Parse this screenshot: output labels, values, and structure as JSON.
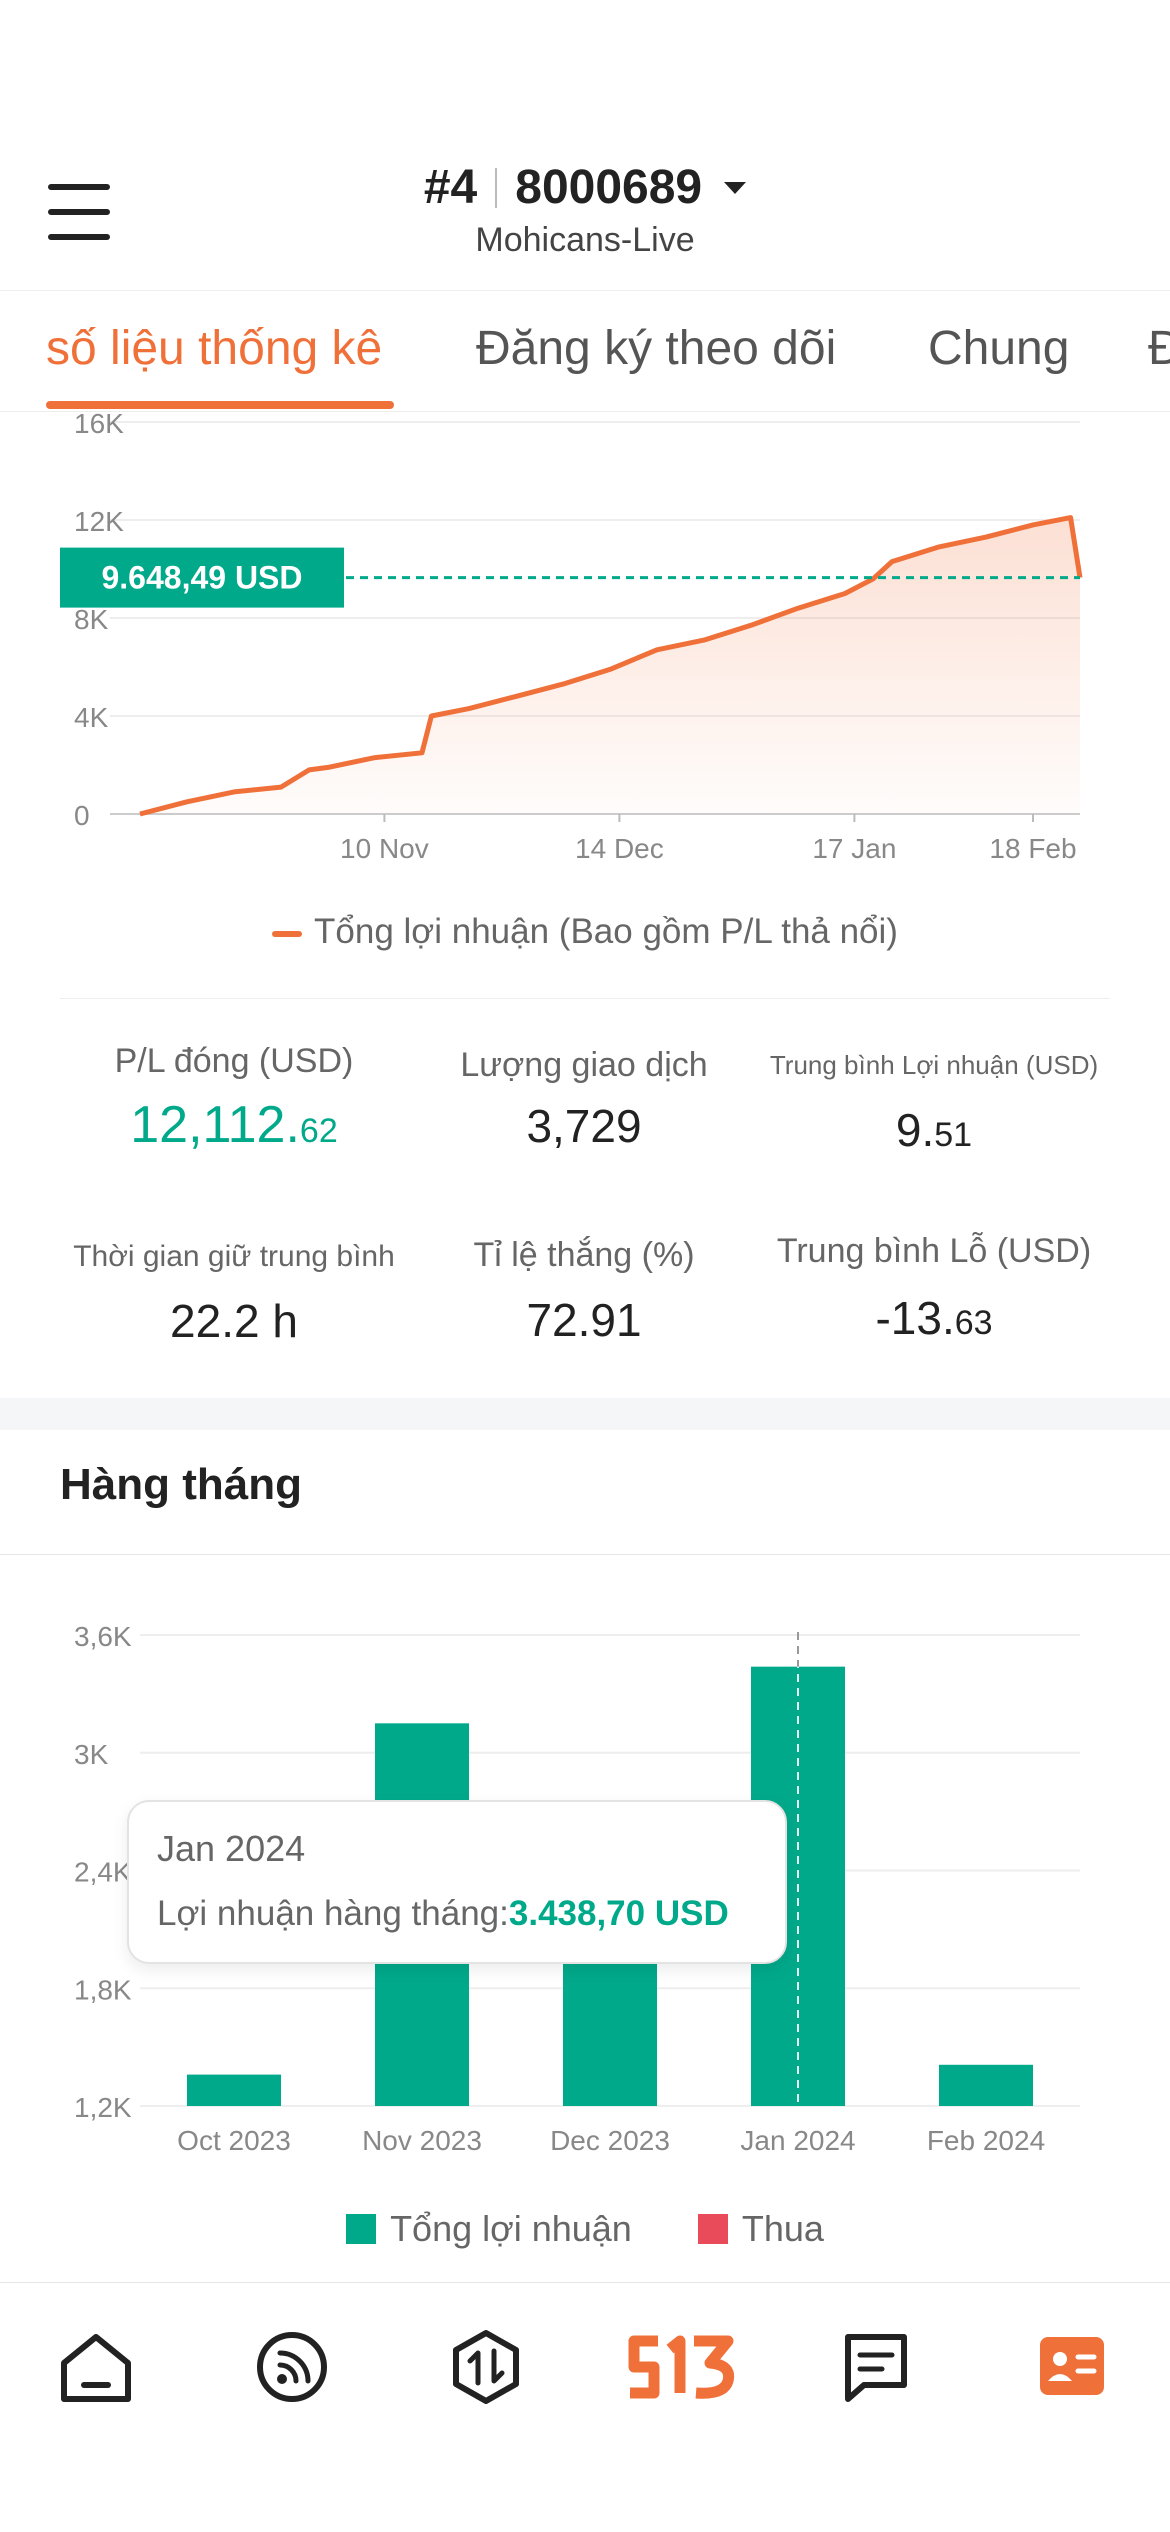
{
  "header": {
    "account_rank": "#4",
    "account_id": "8000689",
    "server": "Mohicans-Live"
  },
  "tabs": [
    {
      "label": "số liệu thống kê",
      "active": true
    },
    {
      "label": "Đăng ký theo dõi",
      "active": false
    },
    {
      "label": "Chung",
      "active": false
    },
    {
      "label": "Đ",
      "active": false
    }
  ],
  "profit_chart": {
    "current_label": "9.648,49  USD",
    "legend": "Tổng lợi nhuận (Bao gồm P/L thả nổi)"
  },
  "stats": {
    "closed_pl": {
      "label": "P/L đóng (USD)",
      "int": "12,112.",
      "dec": "62"
    },
    "trade_volume": {
      "label": "Lượng giao dịch",
      "value": "3,729"
    },
    "avg_profit": {
      "label": "Trung bình Lợi nhuận (USD)",
      "int": "9.",
      "dec": "51"
    },
    "avg_hold": {
      "label": "Thời gian giữ trung bình",
      "value": "22.2 h"
    },
    "win_rate": {
      "label": "Tỉ lệ thắng (%)",
      "value": "72.91"
    },
    "avg_loss": {
      "label": "Trung bình Lỗ (USD)",
      "int": "-13.",
      "dec": "63"
    }
  },
  "monthly": {
    "title": "Hàng tháng",
    "tooltip": {
      "date": "Jan 2024",
      "label": "Lợi nhuận hàng tháng:",
      "value": "3.438,70  USD"
    },
    "legend": {
      "profit": "Tổng lợi nhuận",
      "loss": "Thua"
    }
  },
  "colors": {
    "accent": "#f0703a",
    "profit": "#00a98a",
    "loss": "#e94b5b"
  },
  "chart_data": [
    {
      "type": "area",
      "xlabel": "",
      "ylabel": "",
      "y_ticks": [
        "0",
        "4K",
        "8K",
        "12K",
        "16K"
      ],
      "y_tick_values": [
        0,
        4000,
        8000,
        12000,
        16000
      ],
      "ylim": [
        0,
        16000
      ],
      "x_ticks": [
        "10 Nov",
        "14 Dec",
        "17 Jan",
        "18 Feb"
      ],
      "x_tick_values": [
        0.26,
        0.51,
        0.76,
        0.95
      ],
      "series": [
        {
          "name": "Tổng lợi nhuận (Bao gồm P/L thả nổi)",
          "x": [
            0.0,
            0.05,
            0.1,
            0.15,
            0.18,
            0.2,
            0.25,
            0.3,
            0.31,
            0.35,
            0.4,
            0.45,
            0.5,
            0.55,
            0.6,
            0.65,
            0.7,
            0.75,
            0.78,
            0.8,
            0.85,
            0.9,
            0.95,
            0.99,
            1.0
          ],
          "y": [
            0,
            500,
            900,
            1100,
            1800,
            1900,
            2300,
            2500,
            4000,
            4300,
            4800,
            5300,
            5900,
            6700,
            7100,
            7700,
            8400,
            9000,
            9600,
            10300,
            10900,
            11300,
            11800,
            12100,
            9650
          ]
        }
      ],
      "reference_line": 9648.49
    },
    {
      "type": "bar",
      "categories": [
        "Oct 2023",
        "Nov 2023",
        "Dec 2023",
        "Jan 2024",
        "Feb 2024"
      ],
      "y_ticks": [
        "1,2K",
        "1,8K",
        "2,4K",
        "3K",
        "3,6K"
      ],
      "y_tick_values": [
        1200,
        1800,
        2400,
        3000,
        3600
      ],
      "ylim": [
        1200,
        3600
      ],
      "series": [
        {
          "name": "Tổng lợi nhuận",
          "values": [
            1360,
            3150,
            2000,
            3438.7,
            1410
          ]
        },
        {
          "name": "Thua",
          "values": [
            0,
            0,
            0,
            0,
            0
          ]
        }
      ],
      "highlight_index": 3
    }
  ]
}
